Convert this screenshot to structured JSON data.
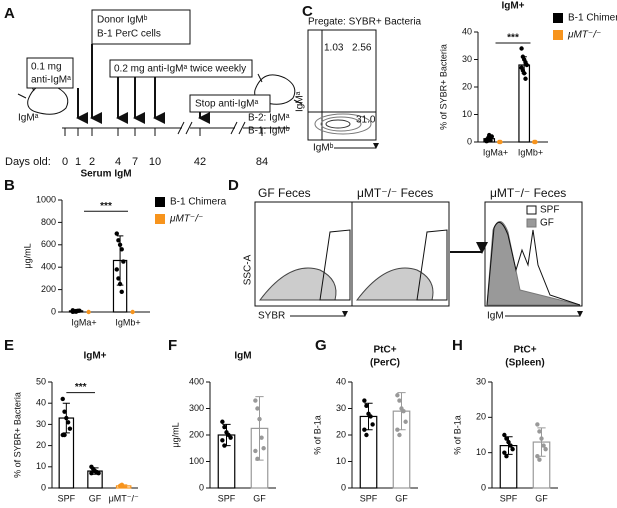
{
  "panel_labels": [
    "A",
    "B",
    "C",
    "D",
    "E",
    "F",
    "G",
    "H"
  ],
  "timeline": {
    "boxes": [
      [
        "0.1 mg",
        "anti-IgMᵃ"
      ],
      [
        "Donor IgMᵇ",
        "B-1 PerC cells"
      ],
      [
        "0.2 mg anti-IgMᵃ twice weekly"
      ],
      [
        "Stop anti-IgMᵃ"
      ]
    ],
    "mouse_label": "IgMᵃ",
    "outcome": [
      "B-2: IgMᵃ",
      "B-1: IgMᵇ"
    ],
    "days_label": "Days old:",
    "days": [
      0,
      1,
      2,
      4,
      7,
      10,
      42,
      84
    ]
  },
  "flow_c": {
    "gate": "Pregate: SYBR+ Bacteria",
    "quadrants": [
      "1.03",
      "2.56",
      "31.0"
    ],
    "x_label": "IgMᵇ",
    "y_label": "IgMᵃ"
  },
  "flow_d": {
    "titles": [
      "GF Feces",
      "μMT⁻/⁻ Feces",
      "μMT⁻/⁻ Feces"
    ],
    "y_label": "SSC-A",
    "x_label": "SYBR",
    "hist_x_label": "IgM",
    "legend": [
      "SPF",
      "GF"
    ]
  },
  "chart_data": [
    {
      "type": "bar",
      "title": [
        "IgM+"
      ],
      "ylabel": "% of SYBR+ Bacteria",
      "categories": [
        "IgMa+",
        "IgMb+"
      ],
      "ylim": [
        0,
        40
      ],
      "yticks": [
        0,
        10,
        20,
        30,
        40
      ],
      "annotation": "***",
      "series": [
        {
          "name": "B-1 Chimera",
          "color": "#000000",
          "values": [
            1.2,
            28
          ],
          "errors": [
            0.8,
            3
          ],
          "points": [
            [
              0.3,
              0.5,
              1,
              1.5,
              2,
              0.8,
              1.2,
              2.5,
              0.6
            ],
            [
              34,
              31,
              30,
              29,
              28,
              27,
              26,
              25,
              23
            ]
          ]
        },
        {
          "name": "μMT⁻/⁻",
          "color": "#f7941d",
          "values": [
            0,
            0
          ],
          "points": [
            [
              0,
              0
            ],
            [
              0,
              0
            ]
          ]
        }
      ]
    },
    {
      "type": "bar",
      "title": [
        "Serum IgM"
      ],
      "ylabel": "μg/mL",
      "categories": [
        "IgMa+",
        "IgMb+"
      ],
      "ylim": [
        0,
        1000
      ],
      "yticks": [
        0,
        200,
        400,
        600,
        800,
        1000
      ],
      "annotation": "***",
      "series": [
        {
          "name": "B-1 Chimera",
          "color": "#000000",
          "values": [
            10,
            460
          ],
          "errors": [
            5,
            220
          ],
          "points": [
            [
              2,
              5,
              8,
              10,
              12,
              15,
              5,
              3
            ],
            [
              700,
              640,
              600,
              560,
              450,
              380,
              300,
              250,
              180
            ]
          ]
        },
        {
          "name": "μMT⁻/⁻",
          "color": "#f7941d",
          "values": [
            0,
            0
          ],
          "points": [
            [
              0
            ],
            [
              0
            ]
          ]
        }
      ]
    },
    {
      "type": "bar",
      "title": [
        "IgM+"
      ],
      "ylabel": "% of SYBR+ Bacteria",
      "categories": [
        "SPF",
        "GF",
        "μMT⁻/⁻"
      ],
      "ylim": [
        0,
        50
      ],
      "yticks": [
        0,
        10,
        20,
        30,
        40,
        50
      ],
      "annotation": "***",
      "series": [
        {
          "colors": [
            "#000000",
            "#000000",
            "#f7941d"
          ],
          "values": [
            33,
            8,
            1
          ],
          "errors": [
            7,
            1.5,
            0.5
          ],
          "points": [
            [
              42,
              36,
              33,
              31,
              28,
              25,
              25
            ],
            [
              10,
              9,
              8,
              7.5,
              7,
              7
            ],
            [
              1,
              1.5
            ]
          ]
        }
      ]
    },
    {
      "type": "bar",
      "title": [
        "IgM"
      ],
      "ylabel": "μg/mL",
      "categories": [
        "SPF",
        "GF"
      ],
      "ylim": [
        0,
        400
      ],
      "yticks": [
        0,
        100,
        200,
        300,
        400
      ],
      "series": [
        {
          "colors": [
            "#000000",
            "#999999"
          ],
          "values": [
            200,
            225
          ],
          "errors": [
            40,
            120
          ],
          "points": [
            [
              250,
              230,
              210,
              200,
              190,
              180,
              160
            ],
            [
              330,
              300,
              260,
              190,
              150,
              140,
              110
            ]
          ]
        }
      ]
    },
    {
      "type": "bar",
      "title": [
        "PtC+",
        "(PerC)"
      ],
      "ylabel": "% of B-1a",
      "categories": [
        "SPF",
        "GF"
      ],
      "ylim": [
        0,
        40
      ],
      "yticks": [
        0,
        10,
        20,
        30,
        40
      ],
      "series": [
        {
          "colors": [
            "#000000",
            "#999999"
          ],
          "values": [
            27,
            29
          ],
          "errors": [
            5,
            7
          ],
          "points": [
            [
              33,
              31,
              28,
              27,
              24,
              22,
              20
            ],
            [
              35,
              33,
              30,
              29,
              25,
              22,
              20
            ]
          ]
        }
      ]
    },
    {
      "type": "bar",
      "title": [
        "PtC+",
        "(Spleen)"
      ],
      "ylabel": "% of B-1a",
      "categories": [
        "SPF",
        "GF"
      ],
      "ylim": [
        0,
        30
      ],
      "yticks": [
        0,
        10,
        20,
        30
      ],
      "series": [
        {
          "colors": [
            "#000000",
            "#999999"
          ],
          "values": [
            12,
            13
          ],
          "errors": [
            2.5,
            4
          ],
          "points": [
            [
              15,
              14,
              13,
              12,
              11,
              10,
              9
            ],
            [
              18,
              16,
              14,
              12,
              11,
              9,
              8
            ]
          ]
        }
      ]
    }
  ]
}
